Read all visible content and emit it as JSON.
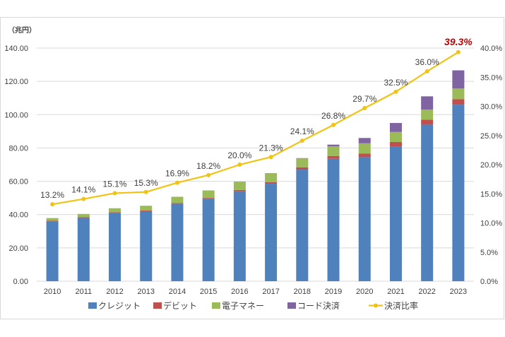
{
  "chart_data": {
    "type": "bar",
    "subtype": "stacked-bar-with-line",
    "y_unit_label": "（兆円）",
    "categories": [
      "2010",
      "2011",
      "2012",
      "2013",
      "2014",
      "2015",
      "2016",
      "2017",
      "2018",
      "2019",
      "2020",
      "2021",
      "2022",
      "2023"
    ],
    "series": [
      {
        "name": "クレジット",
        "type": "bar",
        "axis": "left",
        "color": "#4f81bd",
        "values": [
          36.0,
          38.0,
          41.0,
          42.0,
          46.5,
          49.5,
          54.0,
          58.5,
          67.0,
          73.5,
          74.5,
          81.0,
          94.0,
          106.0
        ]
      },
      {
        "name": "デビット",
        "type": "bar",
        "axis": "left",
        "color": "#c0504d",
        "values": [
          0.3,
          0.4,
          0.4,
          0.4,
          0.4,
          0.5,
          0.8,
          1.0,
          1.4,
          1.7,
          2.2,
          2.6,
          3.0,
          3.3
        ]
      },
      {
        "name": "電子マネー",
        "type": "bar",
        "axis": "left",
        "color": "#9bbb59",
        "values": [
          1.6,
          2.0,
          2.4,
          2.9,
          3.8,
          4.5,
          5.0,
          5.4,
          5.3,
          5.8,
          6.1,
          6.0,
          6.1,
          6.4
        ]
      },
      {
        "name": "コード決済",
        "type": "bar",
        "axis": "left",
        "color": "#8064a2",
        "values": [
          0.0,
          0.0,
          0.0,
          0.0,
          0.0,
          0.0,
          0.0,
          0.0,
          0.2,
          1.0,
          3.2,
          5.4,
          7.9,
          10.9
        ]
      },
      {
        "name": "決済比率",
        "type": "line",
        "axis": "right",
        "color": "#f2c314",
        "values": [
          13.2,
          14.1,
          15.1,
          15.3,
          16.9,
          18.2,
          20.0,
          21.3,
          24.1,
          26.8,
          29.7,
          32.5,
          36.0,
          39.3
        ]
      }
    ],
    "line_labels": [
      "13.2%",
      "14.1%",
      "15.1%",
      "15.3%",
      "16.9%",
      "18.2%",
      "20.0%",
      "21.3%",
      "24.1%",
      "26.8%",
      "29.7%",
      "32.5%",
      "36.0%",
      "39.3%"
    ],
    "highlight_index": 13,
    "highlight_color": "#c00000",
    "y_left": {
      "min": 0,
      "max": 140,
      "step": 20,
      "tick_labels": [
        "0.00",
        "20.00",
        "40.00",
        "60.00",
        "80.00",
        "100.00",
        "120.00",
        "140.00"
      ]
    },
    "y_right": {
      "min": 0,
      "max": 40,
      "step": 5,
      "tick_labels": [
        "0.0%",
        "5.0%",
        "10.0%",
        "15.0%",
        "20.0%",
        "25.0%",
        "30.0%",
        "35.0%",
        "40.0%"
      ]
    },
    "grid": true,
    "legend_position": "bottom",
    "grid_color": "#d9d9d9",
    "text_color": "#404040"
  }
}
